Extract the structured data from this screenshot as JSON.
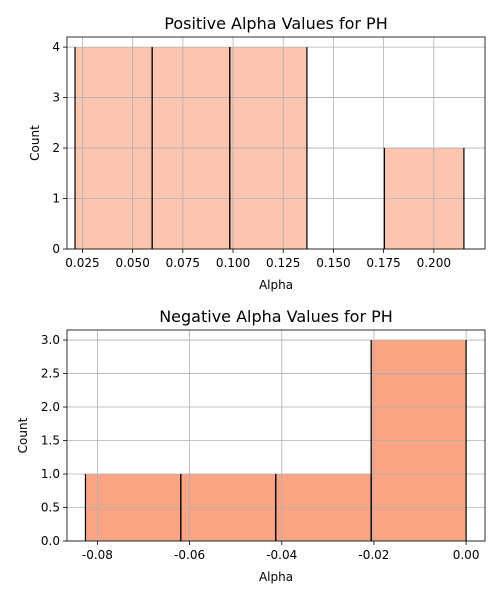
{
  "chart_data": [
    {
      "type": "bar",
      "title": "Positive Alpha Values for PH",
      "xlabel": "Alpha",
      "ylabel": "Count",
      "xlim": [
        0.0173,
        0.2255
      ],
      "ylim": [
        0,
        4.2
      ],
      "xticks": [
        "0.025",
        "0.050",
        "0.075",
        "0.100",
        "0.125",
        "0.150",
        "0.175",
        "0.200"
      ],
      "xtick_values": [
        0.025,
        0.05,
        0.075,
        0.1,
        0.125,
        0.15,
        0.175,
        0.2
      ],
      "yticks": [
        "0",
        "1",
        "2",
        "3",
        "4"
      ],
      "ytick_values": [
        0,
        1,
        2,
        3,
        4
      ],
      "bins": [
        {
          "x0": 0.0213,
          "x1": 0.0597,
          "count": 4
        },
        {
          "x0": 0.0597,
          "x1": 0.0984,
          "count": 4
        },
        {
          "x0": 0.0984,
          "x1": 0.1368,
          "count": 4
        },
        {
          "x0": 0.1368,
          "x1": 0.1754,
          "count": 0
        },
        {
          "x0": 0.1754,
          "x1": 0.215,
          "count": 2
        }
      ],
      "color": "#fcc5b0",
      "grid": true
    },
    {
      "type": "bar",
      "title": "Negative Alpha Values for PH",
      "xlabel": "Alpha",
      "ylabel": "Count",
      "xlim": [
        -0.0866,
        0.0041
      ],
      "ylim": [
        0,
        3.15
      ],
      "xticks": [
        "-0.08",
        "-0.06",
        "-0.04",
        "-0.02",
        "0.00"
      ],
      "xtick_values": [
        -0.08,
        -0.06,
        -0.04,
        -0.02,
        0.0
      ],
      "yticks": [
        "0.0",
        "0.5",
        "1.0",
        "1.5",
        "2.0",
        "2.5",
        "3.0"
      ],
      "ytick_values": [
        0,
        0.5,
        1.0,
        1.5,
        2.0,
        2.5,
        3.0
      ],
      "bins": [
        {
          "x0": -0.0826,
          "x1": -0.0619,
          "count": 1
        },
        {
          "x0": -0.0619,
          "x1": -0.0413,
          "count": 1
        },
        {
          "x0": -0.0413,
          "x1": -0.0206,
          "count": 1
        },
        {
          "x0": -0.0206,
          "x1": 0.0,
          "count": 3
        }
      ],
      "color": "#fca584",
      "grid": true
    }
  ]
}
